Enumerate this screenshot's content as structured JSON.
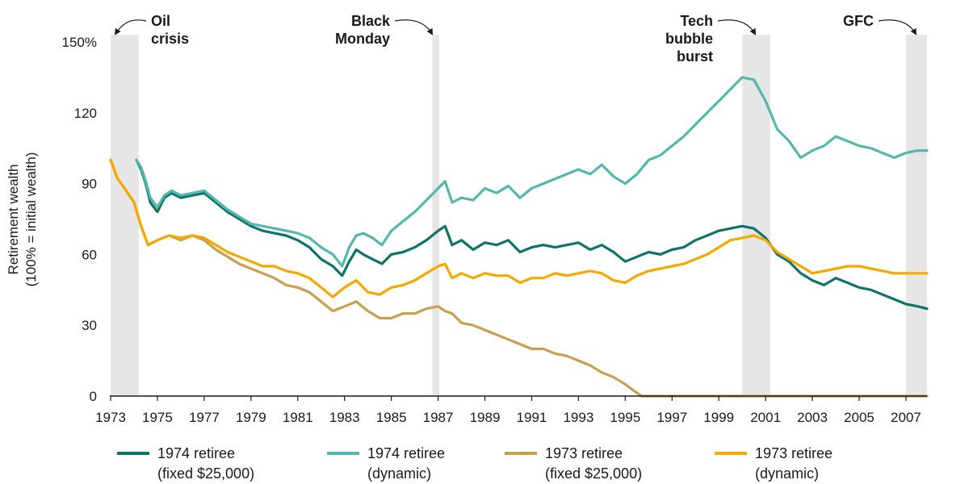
{
  "chart_data": {
    "type": "line",
    "xlabel": "",
    "ylabel": [
      "Retirement wealth",
      "(100% = initial wealth)"
    ],
    "xlim": [
      1973,
      2007.9
    ],
    "ylim": [
      0,
      150
    ],
    "yticks": [
      "150%",
      "120",
      "90",
      "60",
      "30",
      "0"
    ],
    "ytick_values": [
      150,
      120,
      90,
      60,
      30,
      0
    ],
    "xticks": [
      "1973",
      "1975",
      "1977",
      "1979",
      "1981",
      "1983",
      "1985",
      "1987",
      "1989",
      "1991",
      "1993",
      "1995",
      "1997",
      "1999",
      "2001",
      "2003",
      "2005",
      "2007"
    ],
    "xtick_values": [
      1973,
      1975,
      1977,
      1979,
      1981,
      1983,
      1985,
      1987,
      1989,
      1991,
      1993,
      1995,
      1997,
      1999,
      2001,
      2003,
      2005,
      2007
    ],
    "grid": false,
    "events": [
      {
        "label": [
          "Oil",
          "crisis"
        ],
        "start": 1973.0,
        "end": 1974.2
      },
      {
        "label": [
          "Black",
          "Monday"
        ],
        "start": 1986.75,
        "end": 1987.05
      },
      {
        "label": [
          "Tech",
          "bubble",
          "burst"
        ],
        "start": 2000.0,
        "end": 2001.2
      },
      {
        "label": [
          "GFC"
        ],
        "start": 2007.0,
        "end": 2007.9
      }
    ],
    "series": [
      {
        "name": [
          "1974 retiree",
          "(fixed $25,000)"
        ],
        "color": "#0e7469",
        "x": [
          1974.1,
          1974.3,
          1974.5,
          1974.7,
          1975.0,
          1975.3,
          1975.6,
          1976.0,
          1976.5,
          1977.0,
          1977.5,
          1978.0,
          1978.5,
          1979.0,
          1979.5,
          1980.0,
          1980.5,
          1981.0,
          1981.5,
          1982.0,
          1982.5,
          1982.9,
          1983.2,
          1983.5,
          1983.8,
          1984.2,
          1984.6,
          1985.0,
          1985.5,
          1986.0,
          1986.5,
          1987.0,
          1987.3,
          1987.6,
          1988.0,
          1988.5,
          1989.0,
          1989.5,
          1990.0,
          1990.5,
          1991.0,
          1991.5,
          1992.0,
          1992.5,
          1993.0,
          1993.5,
          1994.0,
          1994.5,
          1995.0,
          1995.5,
          1996.0,
          1996.5,
          1997.0,
          1997.5,
          1998.0,
          1998.5,
          1999.0,
          1999.5,
          2000.0,
          2000.5,
          2001.0,
          2001.5,
          2002.0,
          2002.5,
          2003.0,
          2003.5,
          2004.0,
          2004.5,
          2005.0,
          2005.5,
          2006.0,
          2006.5,
          2007.0,
          2007.5,
          2007.9
        ],
        "y": [
          100,
          96,
          90,
          82,
          78,
          84,
          86,
          84,
          85,
          86,
          82,
          78,
          75,
          72,
          70,
          69,
          68,
          66,
          63,
          58,
          55,
          51,
          57,
          62,
          60,
          58,
          56,
          60,
          61,
          63,
          66,
          70,
          72,
          64,
          66,
          62,
          65,
          64,
          66,
          61,
          63,
          64,
          63,
          64,
          65,
          62,
          64,
          61,
          57,
          59,
          61,
          60,
          62,
          63,
          66,
          68,
          70,
          71,
          72,
          71,
          67,
          60,
          57,
          52,
          49,
          47,
          50,
          48,
          46,
          45,
          43,
          41,
          39,
          38,
          37
        ]
      },
      {
        "name": [
          "1974 retiree",
          "(dynamic)"
        ],
        "color": "#55b8ad",
        "x": [
          1974.1,
          1974.3,
          1974.5,
          1974.7,
          1975.0,
          1975.3,
          1975.6,
          1976.0,
          1976.5,
          1977.0,
          1977.5,
          1978.0,
          1978.5,
          1979.0,
          1979.5,
          1980.0,
          1980.5,
          1981.0,
          1981.5,
          1982.0,
          1982.5,
          1982.9,
          1983.2,
          1983.5,
          1983.8,
          1984.2,
          1984.6,
          1985.0,
          1985.5,
          1986.0,
          1986.5,
          1987.0,
          1987.3,
          1987.6,
          1988.0,
          1988.5,
          1989.0,
          1989.5,
          1990.0,
          1990.5,
          1991.0,
          1991.5,
          1992.0,
          1992.5,
          1993.0,
          1993.5,
          1994.0,
          1994.5,
          1995.0,
          1995.5,
          1996.0,
          1996.5,
          1997.0,
          1997.5,
          1998.0,
          1998.5,
          1999.0,
          1999.5,
          2000.0,
          2000.5,
          2001.0,
          2001.5,
          2002.0,
          2002.5,
          2003.0,
          2003.5,
          2004.0,
          2004.5,
          2005.0,
          2005.5,
          2006.0,
          2006.5,
          2007.0,
          2007.5,
          2007.9
        ],
        "y": [
          100,
          97,
          91,
          84,
          80,
          85,
          87,
          85,
          86,
          87,
          83,
          79,
          76,
          73,
          72,
          71,
          70,
          69,
          67,
          63,
          60,
          55,
          63,
          68,
          69,
          67,
          64,
          70,
          74,
          78,
          83,
          88,
          91,
          82,
          84,
          83,
          88,
          86,
          89,
          84,
          88,
          90,
          92,
          94,
          96,
          94,
          98,
          93,
          90,
          94,
          100,
          102,
          106,
          110,
          115,
          120,
          125,
          130,
          135,
          134,
          125,
          113,
          108,
          101,
          104,
          106,
          110,
          108,
          106,
          105,
          103,
          101,
          103,
          104,
          104
        ]
      },
      {
        "name": [
          "1973 retiree",
          "(fixed $25,000)"
        ],
        "color": "#c9a050",
        "x": [
          1973.0,
          1973.3,
          1973.6,
          1974.0,
          1974.3,
          1974.6,
          1975.0,
          1975.5,
          1976.0,
          1976.5,
          1977.0,
          1977.5,
          1978.0,
          1978.5,
          1979.0,
          1979.5,
          1980.0,
          1980.5,
          1981.0,
          1981.5,
          1982.0,
          1982.5,
          1983.0,
          1983.5,
          1984.0,
          1984.5,
          1985.0,
          1985.5,
          1986.0,
          1986.5,
          1987.0,
          1987.3,
          1987.6,
          1988.0,
          1988.5,
          1989.0,
          1989.5,
          1990.0,
          1990.5,
          1991.0,
          1991.5,
          1992.0,
          1992.5,
          1993.0,
          1993.5,
          1994.0,
          1994.5,
          1995.0,
          1995.4,
          1995.7,
          1996.0,
          2000.0,
          2004.0,
          2007.9
        ],
        "y": [
          100,
          92,
          88,
          82,
          72,
          64,
          66,
          68,
          66,
          68,
          66,
          62,
          59,
          56,
          54,
          52,
          50,
          47,
          46,
          44,
          40,
          36,
          38,
          40,
          36,
          33,
          33,
          35,
          35,
          37,
          38,
          36,
          35,
          31,
          30,
          28,
          26,
          24,
          22,
          20,
          20,
          18,
          17,
          15,
          13,
          10,
          8,
          5,
          2,
          0,
          0,
          0,
          0,
          0
        ]
      },
      {
        "name": [
          "1973 retiree",
          "(dynamic)"
        ],
        "color": "#f5a800",
        "x": [
          1973.0,
          1973.3,
          1973.6,
          1974.0,
          1974.3,
          1974.6,
          1975.0,
          1975.5,
          1976.0,
          1976.5,
          1977.0,
          1977.5,
          1978.0,
          1978.5,
          1979.0,
          1979.5,
          1980.0,
          1980.5,
          1981.0,
          1981.5,
          1982.0,
          1982.5,
          1983.0,
          1983.5,
          1984.0,
          1984.5,
          1985.0,
          1985.5,
          1986.0,
          1986.5,
          1987.0,
          1987.3,
          1987.6,
          1988.0,
          1988.5,
          1989.0,
          1989.5,
          1990.0,
          1990.5,
          1991.0,
          1991.5,
          1992.0,
          1992.5,
          1993.0,
          1993.5,
          1994.0,
          1994.5,
          1995.0,
          1995.5,
          1996.0,
          1996.5,
          1997.0,
          1997.5,
          1998.0,
          1998.5,
          1999.0,
          1999.5,
          2000.0,
          2000.5,
          2001.0,
          2001.5,
          2002.0,
          2002.5,
          2003.0,
          2003.5,
          2004.0,
          2004.5,
          2005.0,
          2005.5,
          2006.0,
          2006.5,
          2007.0,
          2007.5,
          2007.9
        ],
        "y": [
          100,
          92,
          88,
          82,
          72,
          64,
          66,
          68,
          67,
          68,
          67,
          64,
          61,
          59,
          57,
          55,
          55,
          53,
          52,
          50,
          46,
          42,
          46,
          49,
          44,
          43,
          46,
          47,
          49,
          52,
          55,
          56,
          50,
          52,
          50,
          52,
          51,
          51,
          48,
          50,
          50,
          52,
          51,
          52,
          53,
          52,
          49,
          48,
          51,
          53,
          54,
          55,
          56,
          58,
          60,
          63,
          66,
          67,
          68,
          66,
          61,
          58,
          55,
          52,
          53,
          54,
          55,
          55,
          54,
          53,
          52,
          52,
          52,
          52
        ]
      }
    ],
    "legend_position": "bottom"
  }
}
